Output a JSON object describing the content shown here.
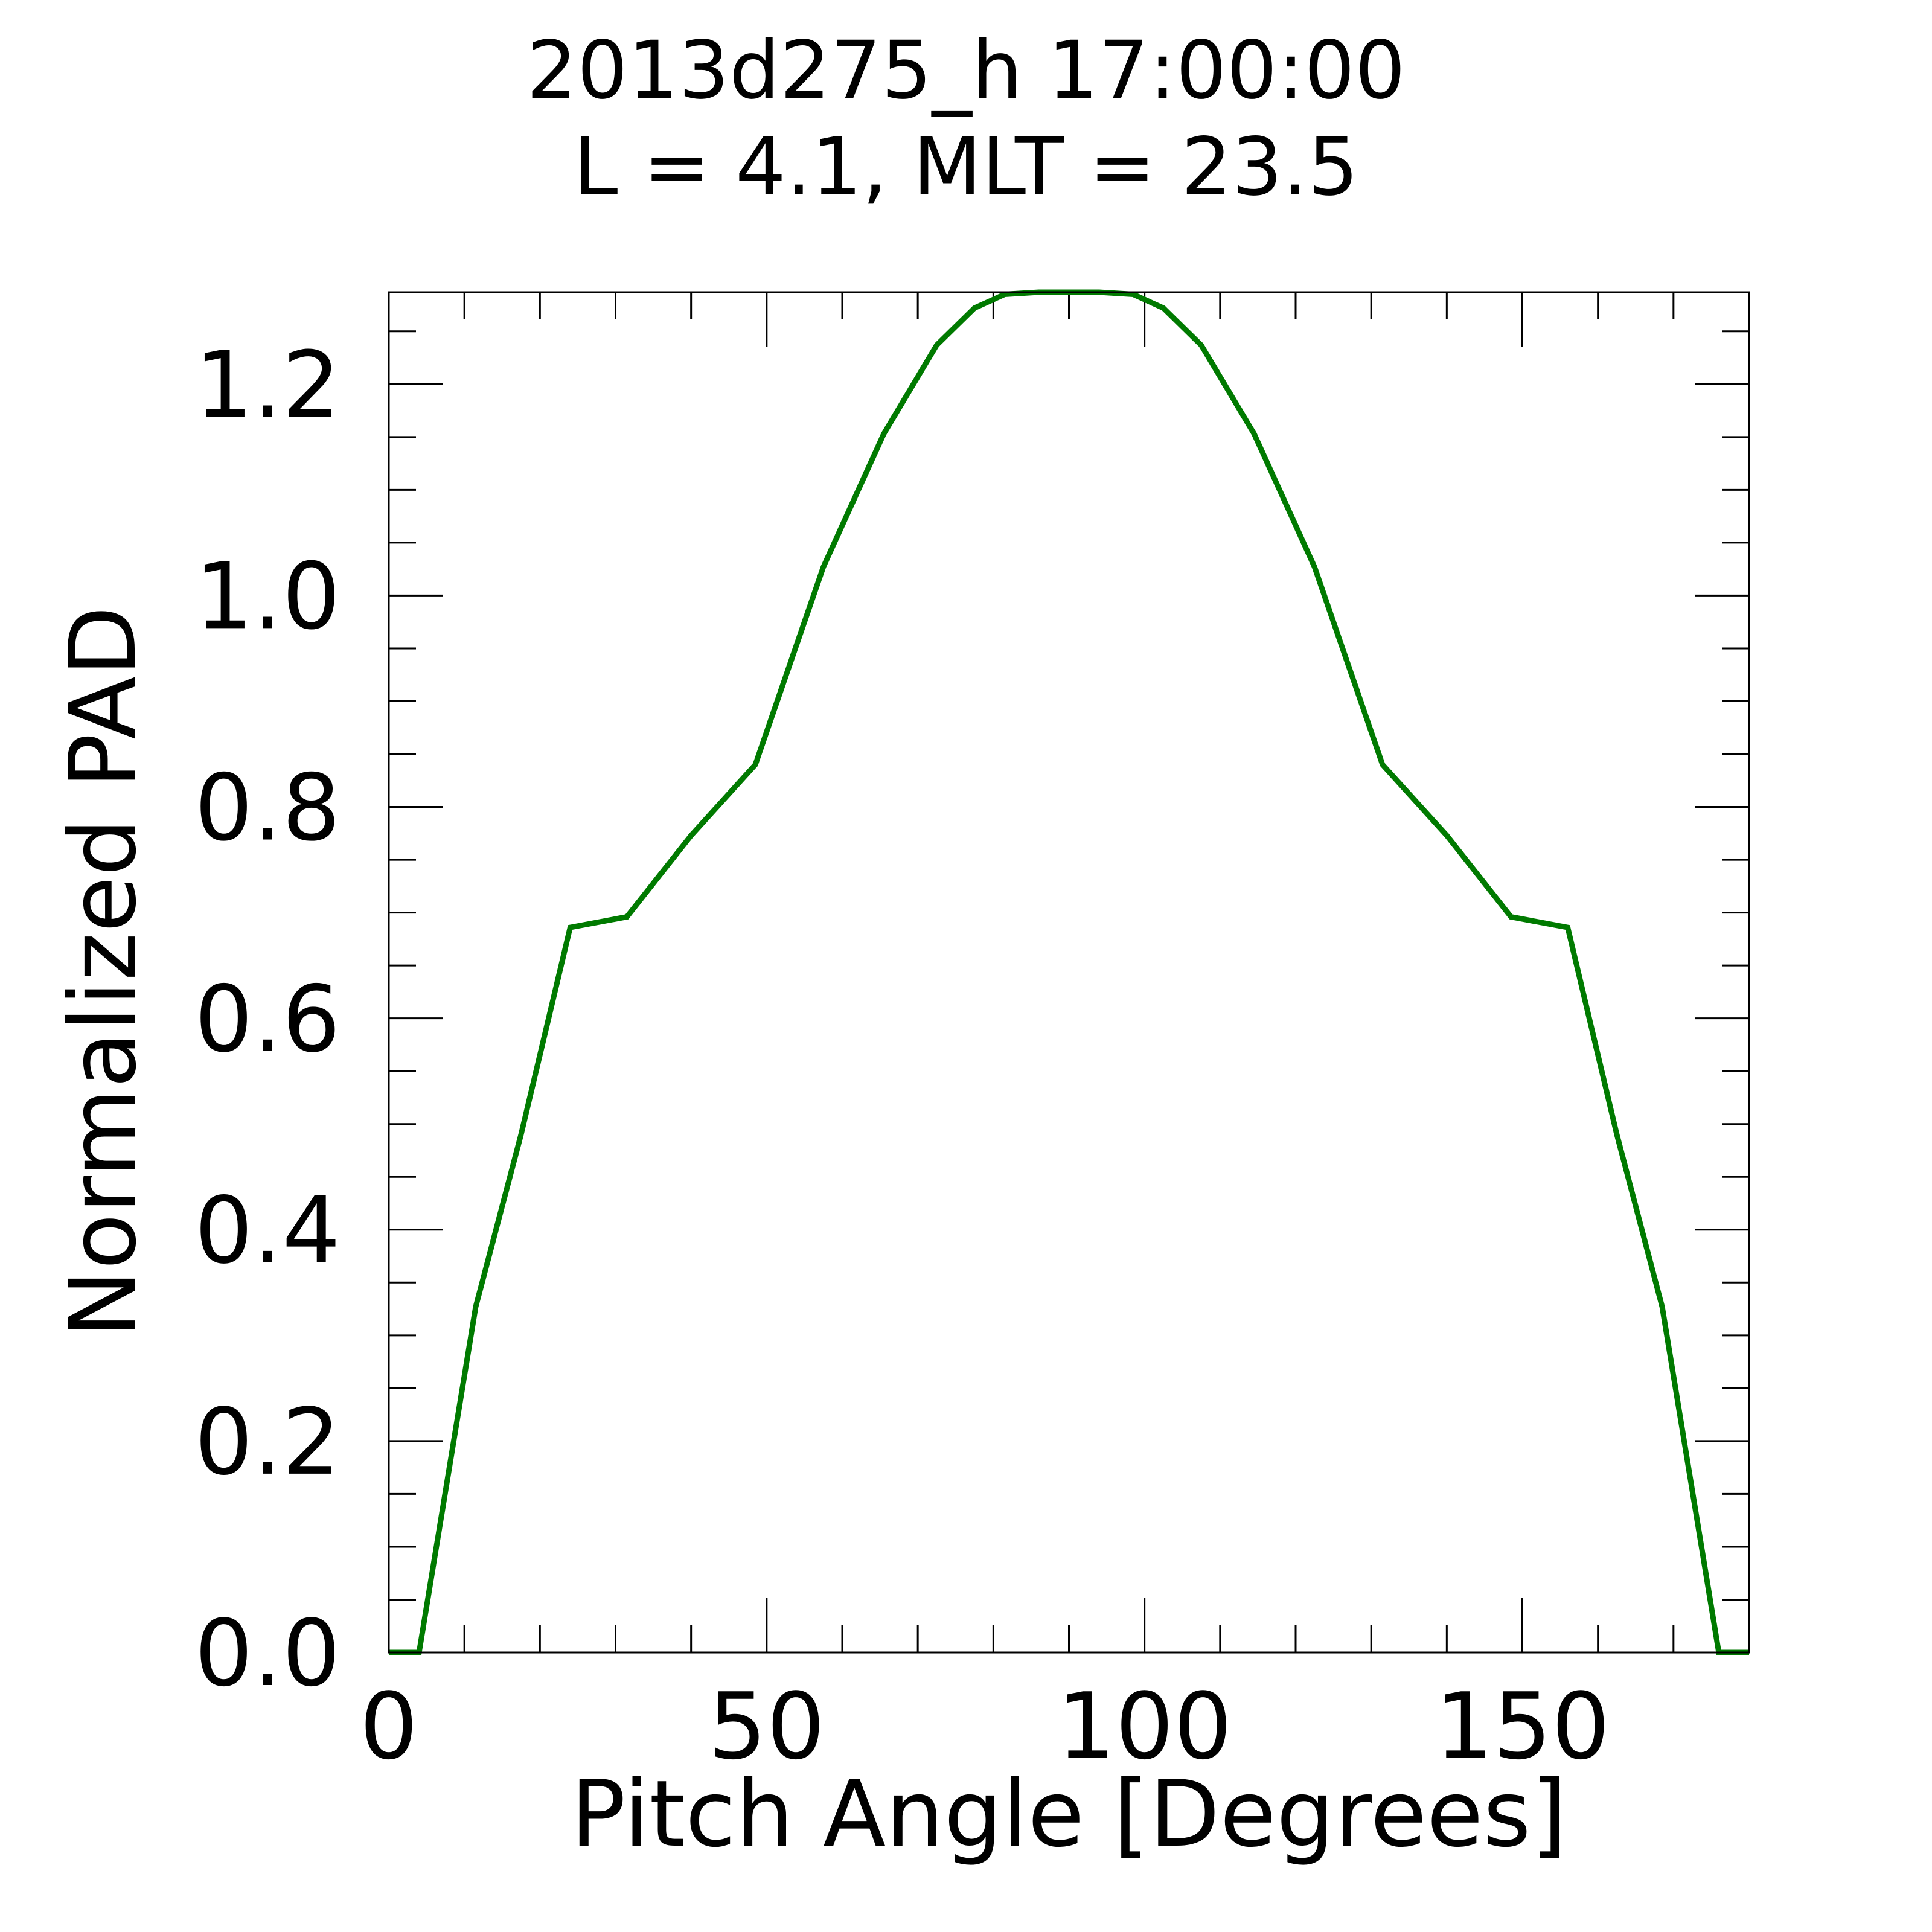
{
  "chart_data": {
    "type": "line",
    "title": "2013d275_h  17:00:00",
    "subtitle": "L = 4.1, MLT = 23.5",
    "xlabel": "Pitch Angle [Degrees]",
    "ylabel": "Normalized PAD",
    "xlim": [
      0,
      180
    ],
    "ylim": [
      0,
      1.287
    ],
    "xticks": [
      0,
      50,
      100,
      150
    ],
    "xtick_labels": [
      "0",
      "50",
      "100",
      "150"
    ],
    "yticks": [
      0.0,
      0.2,
      0.4,
      0.6,
      0.8,
      1.0,
      1.2
    ],
    "ytick_labels": [
      "0.0",
      "0.2",
      "0.4",
      "0.6",
      "0.8",
      "1.0",
      "1.2"
    ],
    "x_minor_step": 10,
    "y_minor_step": 0.05,
    "grid": false,
    "series": [
      {
        "color": "#007a00",
        "x": [
          0,
          4,
          11.5,
          17.5,
          24,
          31.5,
          40,
          48.5,
          57.5,
          65.5,
          72.5,
          77.5,
          81.5,
          86,
          90,
          94,
          98.5,
          102.5,
          107.5,
          114.5,
          122.5,
          131.5,
          140,
          148.5,
          156,
          162.5,
          168.5,
          176,
          180
        ],
        "y": [
          0,
          0,
          0.327,
          0.49,
          0.686,
          0.696,
          0.773,
          0.84,
          1.027,
          1.153,
          1.237,
          1.272,
          1.285,
          1.287,
          1.287,
          1.287,
          1.285,
          1.272,
          1.237,
          1.153,
          1.027,
          0.84,
          0.773,
          0.696,
          0.686,
          0.49,
          0.327,
          0,
          0
        ]
      }
    ]
  }
}
